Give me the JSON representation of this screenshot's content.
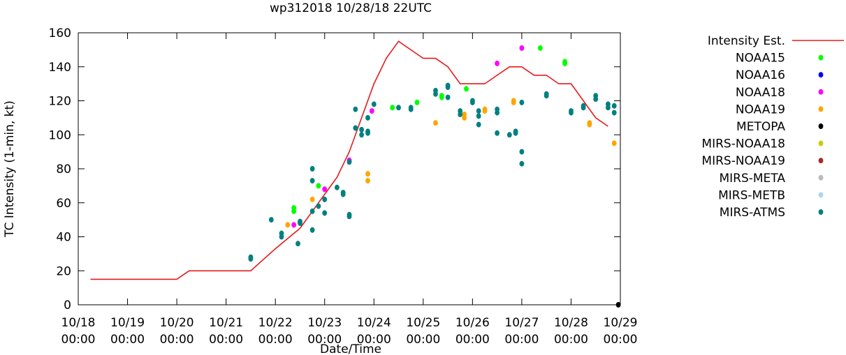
{
  "chart_data": {
    "type": "scatter",
    "title": "wp312018 10/28/18 22UTC",
    "xlabel": "Date/Time",
    "ylabel": "TC Intensity (1-min, kt)",
    "ylim": [
      0,
      160
    ],
    "yticks": [
      0,
      20,
      40,
      60,
      80,
      100,
      120,
      140,
      160
    ],
    "xlim": [
      "10/18 00:00",
      "10/29 00:00"
    ],
    "xticks": [
      {
        "date": "10/18",
        "time": "00:00"
      },
      {
        "date": "10/19",
        "time": "00:00"
      },
      {
        "date": "10/20",
        "time": "00:00"
      },
      {
        "date": "10/21",
        "time": "00:00"
      },
      {
        "date": "10/22",
        "time": "00:00"
      },
      {
        "date": "10/23",
        "time": "00:00"
      },
      {
        "date": "10/24",
        "time": "00:00"
      },
      {
        "date": "10/25",
        "time": "00:00"
      },
      {
        "date": "10/26",
        "time": "00:00"
      },
      {
        "date": "10/27",
        "time": "00:00"
      },
      {
        "date": "10/28",
        "time": "00:00"
      },
      {
        "date": "10/29",
        "time": "00:00"
      }
    ],
    "legend_position": "right",
    "series": [
      {
        "name": "Intensity Est.",
        "kind": "line",
        "color": "#e41a1c",
        "x": [
          "10/18 06:00",
          "10/19 00:00",
          "10/20 00:00",
          "10/20 06:00",
          "10/21 00:00",
          "10/21 12:00",
          "10/22 00:00",
          "10/22 12:00",
          "10/23 00:00",
          "10/23 06:00",
          "10/23 12:00",
          "10/23 18:00",
          "10/24 00:00",
          "10/24 06:00",
          "10/24 12:00",
          "10/25 00:00",
          "10/25 06:00",
          "10/25 12:00",
          "10/25 18:00",
          "10/26 00:00",
          "10/26 06:00",
          "10/26 12:00",
          "10/26 18:00",
          "10/27 00:00",
          "10/27 06:00",
          "10/27 12:00",
          "10/27 18:00",
          "10/28 00:00",
          "10/28 06:00",
          "10/28 12:00",
          "10/28 18:00"
        ],
        "y": [
          15,
          15,
          15,
          20,
          20,
          20,
          33,
          45,
          65,
          75,
          90,
          110,
          130,
          145,
          155,
          145,
          145,
          140,
          130,
          130,
          130,
          135,
          140,
          140,
          135,
          135,
          130,
          130,
          120,
          110,
          105
        ]
      },
      {
        "name": "NOAA15",
        "kind": "points",
        "color": "#00ff00",
        "x": [
          "10/22 09:00",
          "10/22 09:00",
          "10/22 21:00",
          "10/24 09:00",
          "10/24 21:00",
          "10/25 09:00",
          "10/25 09:00",
          "10/25 21:00",
          "10/27 09:00",
          "10/27 21:00",
          "10/27 21:00"
        ],
        "y": [
          57,
          55,
          70,
          116,
          119,
          123,
          122,
          127,
          151,
          143,
          142
        ]
      },
      {
        "name": "NOAA16",
        "kind": "points",
        "color": "#0000ff",
        "x": [],
        "y": []
      },
      {
        "name": "NOAA18",
        "kind": "points",
        "color": "#ff00ff",
        "x": [
          "10/22 09:00",
          "10/23 00:00",
          "10/23 12:00",
          "10/23 23:00",
          "10/26 12:00",
          "10/27 00:00"
        ],
        "y": [
          47,
          68,
          85,
          114,
          142,
          151
        ]
      },
      {
        "name": "NOAA19",
        "kind": "points",
        "color": "#ffa500",
        "x": [
          "10/22 06:00",
          "10/22 18:00",
          "10/23 21:00",
          "10/23 21:00",
          "10/25 06:00",
          "10/25 20:00",
          "10/25 20:00",
          "10/26 06:00",
          "10/26 06:00",
          "10/26 20:00",
          "10/26 20:00",
          "10/28 09:00",
          "10/28 09:00",
          "10/28 21:00"
        ],
        "y": [
          47,
          62,
          77,
          73,
          107,
          112,
          110,
          115,
          114,
          120,
          119,
          107,
          106,
          95
        ]
      },
      {
        "name": "METOPA",
        "kind": "points",
        "color": "#000000",
        "x": [
          "10/28 23:00"
        ],
        "y": [
          0
        ]
      },
      {
        "name": "MIRS-NOAA18",
        "kind": "points",
        "color": "#cccc00",
        "x": [],
        "y": []
      },
      {
        "name": "MIRS-NOAA19",
        "kind": "points",
        "color": "#a52a2a",
        "x": [],
        "y": []
      },
      {
        "name": "MIRS-META",
        "kind": "points",
        "color": "#bbbbbb",
        "x": [],
        "y": []
      },
      {
        "name": "MIRS-METB",
        "kind": "points",
        "color": "#add8e6",
        "x": [],
        "y": []
      },
      {
        "name": "MIRS-ATMS",
        "kind": "points",
        "color": "#008080",
        "x": [
          "10/21 12:00",
          "10/21 12:00",
          "10/21 22:00",
          "10/22 03:00",
          "10/22 03:00",
          "10/22 11:00",
          "10/22 12:00",
          "10/22 18:00",
          "10/22 18:00",
          "10/22 18:00",
          "10/22 18:00",
          "10/23 00:00",
          "10/23 00:00",
          "10/23 06:00",
          "10/23 12:00",
          "10/23 12:00",
          "10/23 12:00",
          "10/23 15:00",
          "10/23 15:00",
          "10/23 18:00",
          "10/23 18:00",
          "10/23 21:00",
          "10/23 21:00",
          "10/23 21:00",
          "10/24 00:00",
          "10/24 12:00",
          "10/24 18:00",
          "10/24 18:00",
          "10/25 06:00",
          "10/25 06:00",
          "10/25 12:00",
          "10/25 12:00",
          "10/25 12:00",
          "10/25 18:00",
          "10/25 18:00",
          "10/26 00:00",
          "10/26 00:00",
          "10/26 03:00",
          "10/26 03:00",
          "10/26 03:00",
          "10/26 12:00",
          "10/26 12:00",
          "10/26 12:00",
          "10/26 18:00",
          "10/26 21:00",
          "10/26 21:00",
          "10/27 00:00",
          "10/27 00:00",
          "10/27 00:00",
          "10/27 12:00",
          "10/27 12:00",
          "10/28 00:00",
          "10/28 00:00",
          "10/28 06:00",
          "10/28 06:00",
          "10/28 12:00",
          "10/28 12:00",
          "10/28 18:00",
          "10/28 18:00",
          "10/28 21:00",
          "10/28 21:00",
          "10/22 12:00",
          "10/22 21:00",
          "10/23 09:00",
          "10/23 09:00"
        ],
        "y": [
          28,
          27,
          50,
          42,
          40,
          36,
          49,
          80,
          73,
          55,
          44,
          62,
          54,
          69,
          53,
          52,
          84,
          115,
          104,
          103,
          100,
          102,
          101,
          110,
          118,
          116,
          115,
          116,
          126,
          124,
          129,
          128,
          122,
          112,
          114,
          120,
          119,
          114,
          111,
          106,
          115,
          113,
          101,
          100,
          101,
          102,
          90,
          83,
          119,
          124,
          123,
          114,
          113,
          116,
          117,
          121,
          123,
          118,
          116,
          117,
          113,
          48,
          58,
          66,
          65
        ]
      }
    ]
  }
}
